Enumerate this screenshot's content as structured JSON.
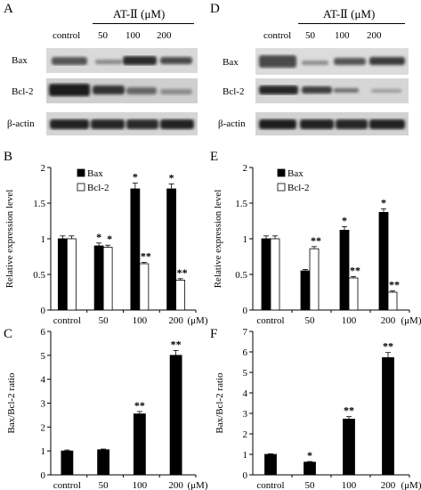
{
  "figure": {
    "blots_left": {
      "letter": "A",
      "treatment_header": "AT-Ⅱ (μM)",
      "lanes": [
        "control",
        "50",
        "100",
        "200"
      ],
      "rows": [
        "Bax",
        "Bcl-2",
        "β-actin"
      ]
    },
    "blots_right": {
      "letter": "D",
      "treatment_header": "AT-Ⅱ (μM)",
      "lanes": [
        "control",
        "50",
        "100",
        "200"
      ],
      "rows": [
        "Bax",
        "Bcl-2",
        "β-actin"
      ]
    }
  },
  "chart_data": [
    {
      "panel": "B",
      "type": "bar",
      "categories": [
        "control",
        "50",
        "100",
        "200"
      ],
      "x_unit": "(μM)",
      "ylabel": "Relative expression level",
      "ylim": [
        0,
        2
      ],
      "yticks": [
        "0",
        "0.5",
        "1",
        "1.5",
        "2"
      ],
      "legend": "top-left",
      "series": [
        {
          "name": "Bax",
          "fill": "black",
          "values": [
            1.0,
            0.9,
            1.7,
            1.7
          ],
          "errors": [
            0.04,
            0.04,
            0.08,
            0.07
          ],
          "sig": [
            "",
            "*",
            "*",
            "*"
          ]
        },
        {
          "name": "Bcl-2",
          "fill": "white",
          "values": [
            1.0,
            0.88,
            0.65,
            0.42
          ],
          "errors": [
            0.04,
            0.03,
            0.02,
            0.02
          ],
          "sig": [
            "",
            "*",
            "**",
            "**"
          ]
        }
      ]
    },
    {
      "panel": "E",
      "type": "bar",
      "categories": [
        "control",
        "50",
        "100",
        "200"
      ],
      "x_unit": "(μM)",
      "ylabel": "Relative expression level",
      "ylim": [
        0,
        2
      ],
      "yticks": [
        "0",
        "0.5",
        "1",
        "1.5",
        "2"
      ],
      "legend": "top-left",
      "series": [
        {
          "name": "Bax",
          "fill": "black",
          "values": [
            1.0,
            0.55,
            1.12,
            1.37
          ],
          "errors": [
            0.04,
            0.02,
            0.05,
            0.05
          ],
          "sig": [
            "",
            "",
            "*",
            "*"
          ]
        },
        {
          "name": "Bcl-2",
          "fill": "white",
          "values": [
            1.0,
            0.86,
            0.45,
            0.25
          ],
          "errors": [
            0.04,
            0.03,
            0.02,
            0.02
          ],
          "sig": [
            "",
            "**",
            "**",
            "**"
          ]
        }
      ]
    },
    {
      "panel": "C",
      "type": "bar",
      "categories": [
        "control",
        "50",
        "100",
        "200"
      ],
      "x_unit": "(μM)",
      "ylabel": "Bax/Bcl-2 ratio",
      "ylim": [
        0,
        6
      ],
      "yticks": [
        "0",
        "1",
        "2",
        "3",
        "4",
        "5",
        "6"
      ],
      "series": [
        {
          "fill": "black",
          "values": [
            1.0,
            1.05,
            2.55,
            5.0
          ],
          "errors": [
            0.04,
            0.03,
            0.1,
            0.2
          ],
          "sig": [
            "",
            "",
            "**",
            "**"
          ]
        }
      ]
    },
    {
      "panel": "F",
      "type": "bar",
      "categories": [
        "control",
        "50",
        "100",
        "200"
      ],
      "x_unit": "(μM)",
      "ylabel": "Bax/Bcl-2 ratio",
      "ylim": [
        0,
        7
      ],
      "yticks": [
        "0",
        "1",
        "2",
        "3",
        "4",
        "5",
        "6",
        "7"
      ],
      "series": [
        {
          "fill": "black",
          "values": [
            1.0,
            0.62,
            2.72,
            5.72
          ],
          "errors": [
            0.03,
            0.03,
            0.12,
            0.25
          ],
          "sig": [
            "",
            "*",
            "**",
            "**"
          ]
        }
      ]
    }
  ]
}
